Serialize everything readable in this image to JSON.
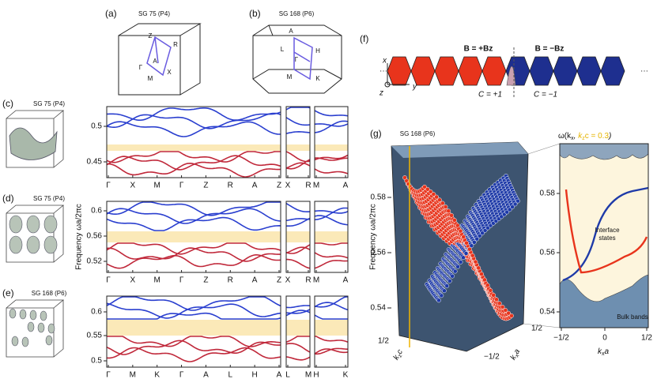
{
  "panels": {
    "a": {
      "label": "(a)",
      "title": "SG 75 (P4)",
      "points": [
        "Z",
        "R",
        "A",
        "Γ",
        "X",
        "M"
      ]
    },
    "b": {
      "label": "(b)",
      "title": "SG 168 (P6)",
      "points": [
        "A",
        "L",
        "H",
        "Γ",
        "M",
        "K"
      ]
    },
    "c": {
      "label": "(c)",
      "title": "SG 75 (P4)",
      "yticks": [
        "0.5",
        "0.45"
      ],
      "kpath": [
        "Γ",
        "X",
        "M",
        "Γ",
        "Z",
        "R",
        "A",
        "Z",
        "X",
        "R",
        "M",
        "A"
      ]
    },
    "d": {
      "label": "(d)",
      "title": "SG 75 (P4)",
      "yticks": [
        "0.6",
        "0.56",
        "0.52"
      ],
      "kpath": [
        "Γ",
        "X",
        "M",
        "Γ",
        "Z",
        "R",
        "A",
        "Z",
        "X",
        "R",
        "M",
        "A"
      ]
    },
    "e": {
      "label": "(e)",
      "title": "SG 168 (P6)",
      "yticks": [
        "0.6",
        "0.55",
        "0.5"
      ],
      "kpath": [
        "Γ",
        "M",
        "K",
        "Γ",
        "A",
        "L",
        "H",
        "A",
        "L",
        "M",
        "H",
        "K"
      ]
    },
    "band_axis_label": "Frequency ωa/2πc",
    "f": {
      "label": "(f)",
      "left_field": "B = +Bz",
      "right_field": "B = −Bz",
      "left_chern": "C = +1",
      "right_chern": "C = −1",
      "axes": [
        "x",
        "y",
        "z"
      ],
      "ellipsis": "···"
    },
    "g": {
      "label": "(g)",
      "title": "SG 168 (P6)",
      "axis_label": "Frequency ωa/2πc",
      "yticks": [
        "0.58",
        "0.56",
        "0.54"
      ],
      "box_ticks": [
        "1/2",
        "1/2",
        "−1/2"
      ],
      "kz_label": [
        {
          "t": "k"
        },
        {
          "t": "z",
          "sub": true
        },
        {
          "t": "c"
        }
      ],
      "kx_label": [
        {
          "t": "k"
        },
        {
          "t": "x",
          "sub": true
        },
        {
          "t": "a"
        }
      ],
      "slice_title": [
        {
          "t": "ω(k"
        },
        {
          "t": "x",
          "sub": true
        },
        {
          "t": ", "
        },
        {
          "t": "k",
          "hl": true
        },
        {
          "t": "z",
          "sub": true,
          "hl": true
        },
        {
          "t": "c = 0.3",
          "hl": true
        },
        {
          "t": ")"
        }
      ],
      "highlight": "#e6b400",
      "slice_yticks": [
        "0.58",
        "0.56",
        "0.54"
      ],
      "slice_xticks": [
        "−1/2",
        "0",
        "1/2"
      ],
      "slice_xlabel": [
        {
          "t": "k"
        },
        {
          "t": "x",
          "sub": true
        },
        {
          "t": "a"
        }
      ],
      "interface": [
        "Interface",
        "states"
      ],
      "bulk": "Bulk bands"
    }
  }
}
